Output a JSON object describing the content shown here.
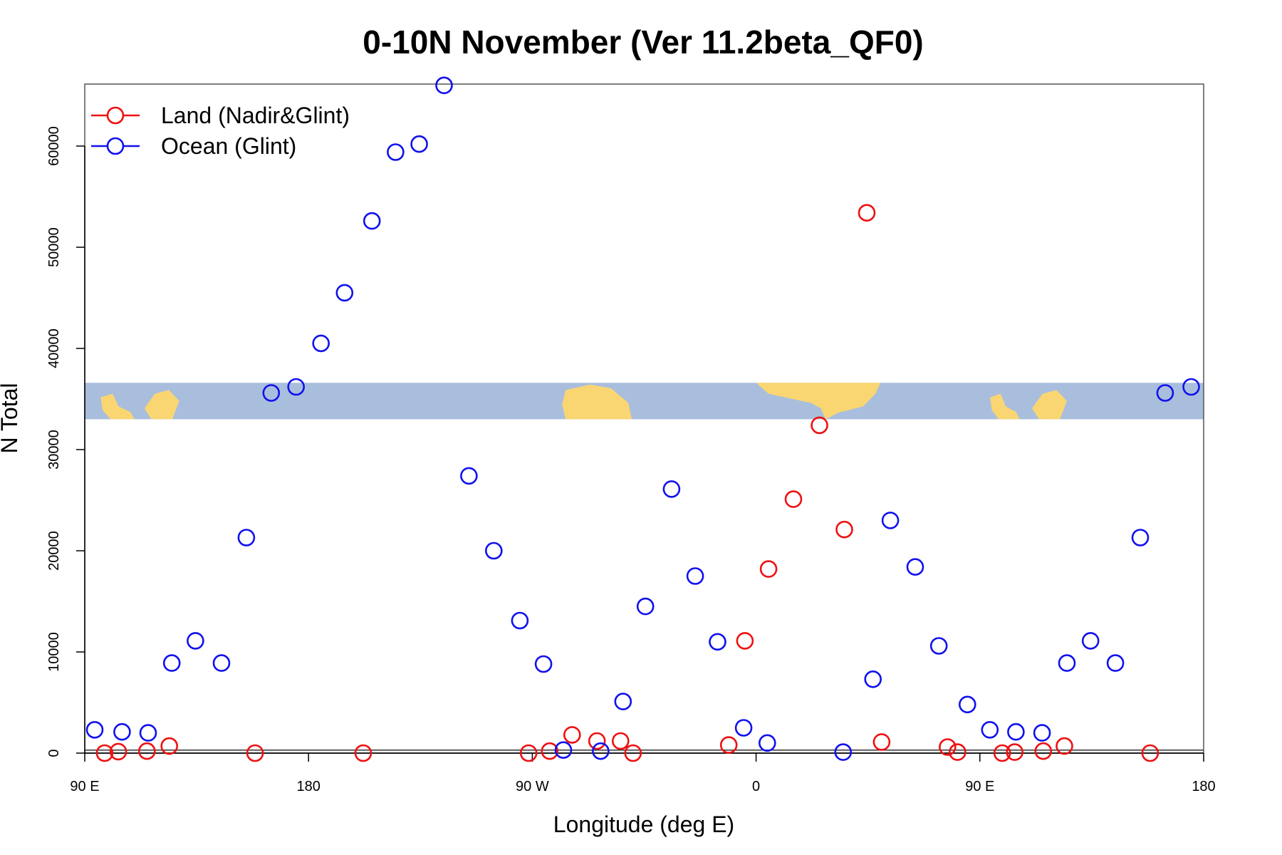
{
  "chart_data": {
    "type": "scatter",
    "title": "0-10N November (Ver 11.2beta_QF0)",
    "xlabel": "Longitude (deg E)",
    "ylabel": "N Total",
    "xlim": [
      0,
      450
    ],
    "ylim": [
      0,
      66000
    ],
    "x_ticks": [
      {
        "value": 0,
        "label": "90 E"
      },
      {
        "value": 90,
        "label": "180"
      },
      {
        "value": 180,
        "label": "90 W"
      },
      {
        "value": 270,
        "label": "0"
      },
      {
        "value": 360,
        "label": "90 E"
      },
      {
        "value": 450,
        "label": "180"
      }
    ],
    "y_ticks": [
      {
        "value": 0,
        "label": "0"
      },
      {
        "value": 10000,
        "label": "10000"
      },
      {
        "value": 20000,
        "label": "20000"
      },
      {
        "value": 30000,
        "label": "30000"
      },
      {
        "value": 40000,
        "label": "40000"
      },
      {
        "value": 50000,
        "label": "50000"
      },
      {
        "value": 60000,
        "label": "60000"
      }
    ],
    "reference_lines": [
      0,
      300
    ],
    "map_strip": {
      "ymin": 33000,
      "ymax": 36600,
      "ocean_color": "#A9BEDD",
      "land_color": "#FAD672"
    },
    "legend": {
      "position": "top-left"
    },
    "series": [
      {
        "name": "Land (Nadir&Glint)",
        "color": "#EE1111",
        "points": [
          [
            8,
            0
          ],
          [
            13.5,
            150
          ],
          [
            25,
            200
          ],
          [
            34,
            700
          ],
          [
            68.5,
            0
          ],
          [
            112,
            0
          ],
          [
            178.5,
            0
          ],
          [
            187,
            200
          ],
          [
            196,
            1800
          ],
          [
            206,
            1200
          ],
          [
            215.5,
            1200
          ],
          [
            220.5,
            0
          ],
          [
            259,
            800
          ],
          [
            265.5,
            11100
          ],
          [
            275,
            18200
          ],
          [
            285,
            25100
          ],
          [
            295.5,
            32400
          ],
          [
            305.5,
            22100
          ],
          [
            314.5,
            53400
          ],
          [
            320.5,
            1100
          ],
          [
            347,
            600
          ],
          [
            351,
            100
          ],
          [
            369,
            0
          ],
          [
            374,
            100
          ],
          [
            385.5,
            200
          ],
          [
            394,
            700
          ],
          [
            428.5,
            0
          ]
        ]
      },
      {
        "name": "Ocean (Glint)",
        "color": "#1111EE",
        "points": [
          [
            4,
            2300
          ],
          [
            15,
            2100
          ],
          [
            25.5,
            2000
          ],
          [
            35,
            8900
          ],
          [
            44.5,
            11100
          ],
          [
            55,
            8900
          ],
          [
            65,
            21300
          ],
          [
            75,
            35600
          ],
          [
            85,
            36200
          ],
          [
            95,
            40500
          ],
          [
            104.5,
            45500
          ],
          [
            115.5,
            52600
          ],
          [
            125,
            59400
          ],
          [
            134.5,
            60200
          ],
          [
            144.5,
            66000
          ],
          [
            154.5,
            27400
          ],
          [
            164.5,
            20000
          ],
          [
            175,
            13100
          ],
          [
            184.5,
            8800
          ],
          [
            192.5,
            300
          ],
          [
            207.5,
            200
          ],
          [
            216.5,
            5100
          ],
          [
            225.5,
            14500
          ],
          [
            236,
            26100
          ],
          [
            245.5,
            17500
          ],
          [
            254.5,
            11000
          ],
          [
            265,
            2500
          ],
          [
            274.5,
            1000
          ],
          [
            305,
            100
          ],
          [
            317,
            7300
          ],
          [
            324,
            23000
          ],
          [
            334,
            18400
          ],
          [
            343.5,
            10600
          ],
          [
            355,
            4800
          ],
          [
            364,
            2300
          ],
          [
            374.5,
            2100
          ],
          [
            385,
            2000
          ],
          [
            395,
            8900
          ],
          [
            404.5,
            11100
          ],
          [
            414.5,
            8900
          ],
          [
            424.5,
            21300
          ],
          [
            434.5,
            35600
          ],
          [
            445,
            36200
          ]
        ]
      }
    ]
  }
}
